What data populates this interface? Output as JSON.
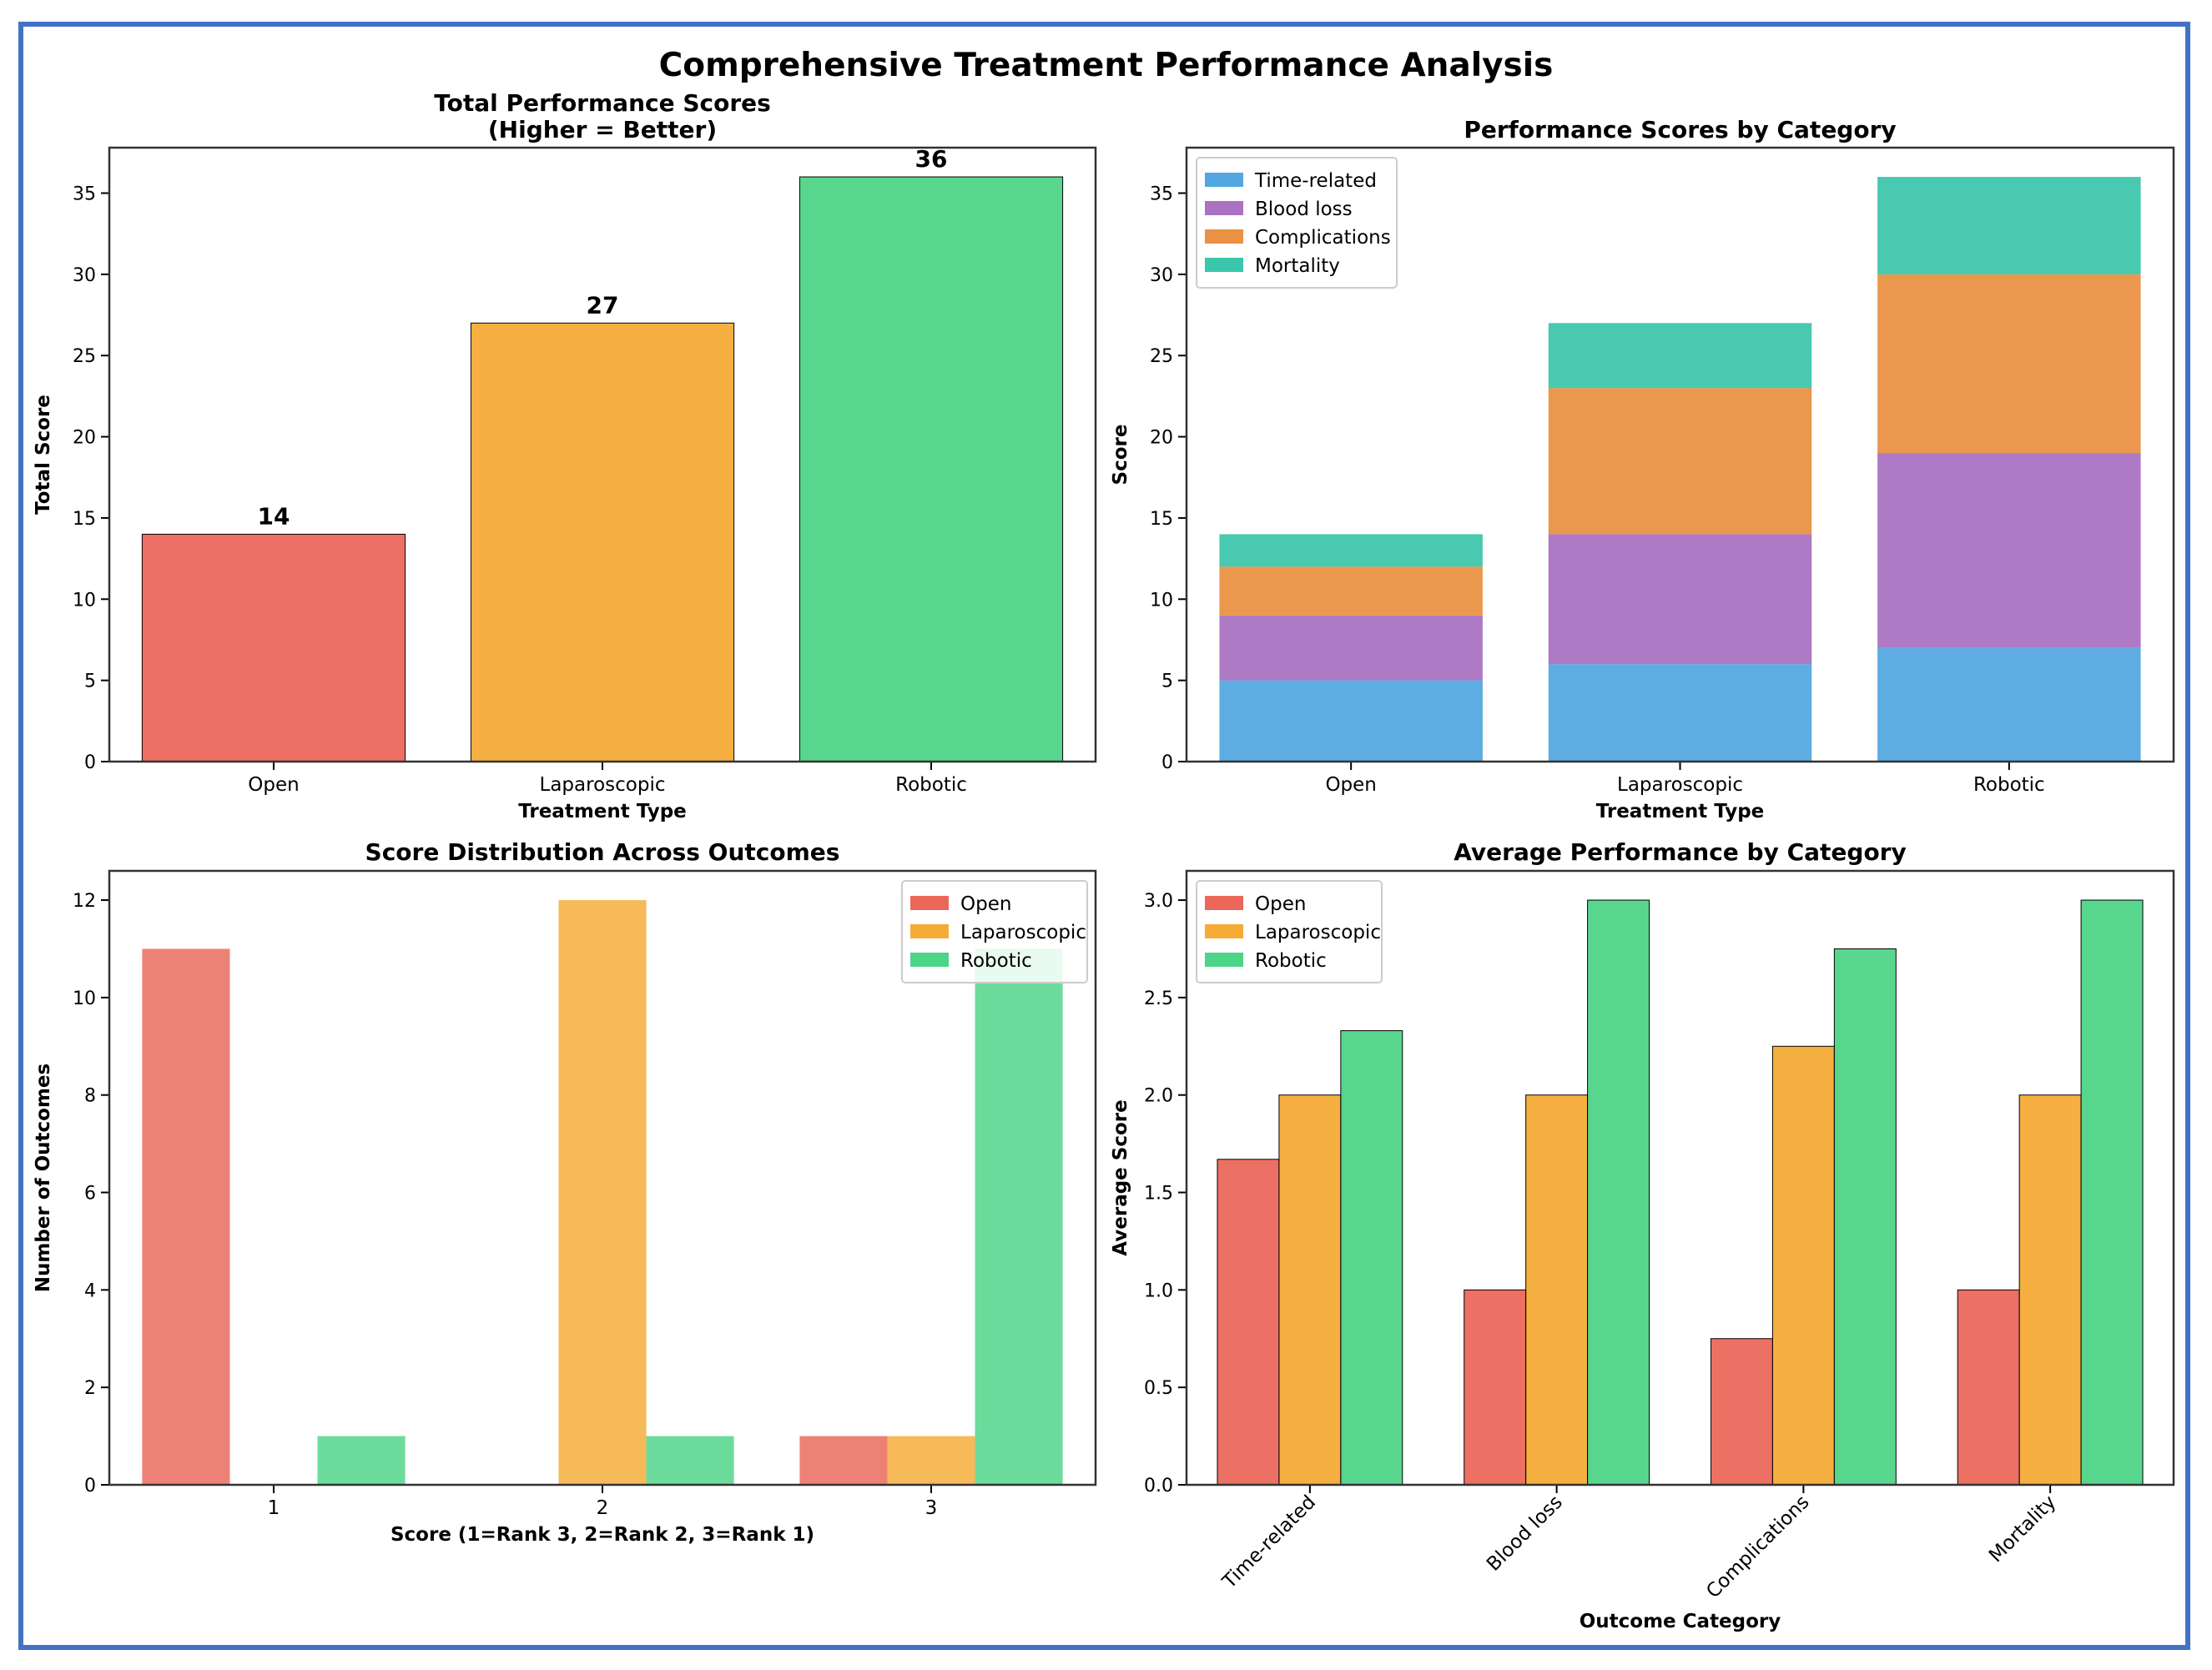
{
  "page_title": "Comprehensive Treatment Performance Analysis",
  "colors": {
    "Open": "#e74c3c",
    "Laparoscopic": "#f39c12",
    "Robotic": "#2ecc71",
    "Time-related": "#3498db",
    "Blood loss": "#9b59b6",
    "Complications": "#e67e22",
    "Mortality": "#1abc9c"
  },
  "chart_data": [
    {
      "id": "total",
      "type": "bar",
      "title": "Total Performance Scores\n(Higher = Better)",
      "xlabel": "Treatment Type",
      "ylabel": "Total Score",
      "categories": [
        "Open",
        "Laparoscopic",
        "Robotic"
      ],
      "values": [
        14,
        27,
        36
      ],
      "value_labels": [
        "14",
        "27",
        "36"
      ],
      "ylim": [
        0,
        37.8
      ],
      "yticks": [
        0,
        5,
        10,
        15,
        20,
        25,
        30,
        35
      ]
    },
    {
      "id": "stacked",
      "type": "bar",
      "stacked": true,
      "title": "Performance Scores by Category",
      "xlabel": "Treatment Type",
      "ylabel": "Score",
      "categories": [
        "Open",
        "Laparoscopic",
        "Robotic"
      ],
      "series": [
        {
          "name": "Time-related",
          "values": [
            5,
            6,
            7
          ]
        },
        {
          "name": "Blood loss",
          "values": [
            4,
            8,
            12
          ]
        },
        {
          "name": "Complications",
          "values": [
            3,
            9,
            11
          ]
        },
        {
          "name": "Mortality",
          "values": [
            2,
            4,
            6
          ]
        }
      ],
      "ylim": [
        0,
        37.8
      ],
      "yticks": [
        0,
        5,
        10,
        15,
        20,
        25,
        30,
        35
      ],
      "legend": "top-left"
    },
    {
      "id": "distribution",
      "type": "bar",
      "title": "Score Distribution Across Outcomes",
      "xlabel": "Score (1=Rank 3, 2=Rank 2, 3=Rank 1)",
      "ylabel": "Number of Outcomes",
      "categories": [
        "1",
        "2",
        "3"
      ],
      "series": [
        {
          "name": "Open",
          "values": [
            11,
            0,
            1
          ]
        },
        {
          "name": "Laparoscopic",
          "values": [
            0,
            12,
            1
          ]
        },
        {
          "name": "Robotic",
          "values": [
            1,
            1,
            11
          ]
        }
      ],
      "ylim": [
        0,
        12.6
      ],
      "yticks": [
        0,
        2,
        4,
        6,
        8,
        10,
        12
      ],
      "legend": "top-right"
    },
    {
      "id": "average",
      "type": "bar",
      "title": "Average Performance by Category",
      "xlabel": "Outcome Category",
      "ylabel": "Average Score",
      "categories": [
        "Time-related",
        "Blood loss",
        "Complications",
        "Mortality"
      ],
      "series": [
        {
          "name": "Open",
          "values": [
            1.67,
            1.0,
            0.75,
            1.0
          ]
        },
        {
          "name": "Laparoscopic",
          "values": [
            2.0,
            2.0,
            2.25,
            2.0
          ]
        },
        {
          "name": "Robotic",
          "values": [
            2.33,
            3.0,
            2.75,
            3.0
          ]
        }
      ],
      "ylim": [
        0,
        3.15
      ],
      "yticks": [
        "0.0",
        "0.5",
        "1.0",
        "1.5",
        "2.0",
        "2.5",
        "3.0"
      ],
      "legend": "top-left"
    }
  ]
}
